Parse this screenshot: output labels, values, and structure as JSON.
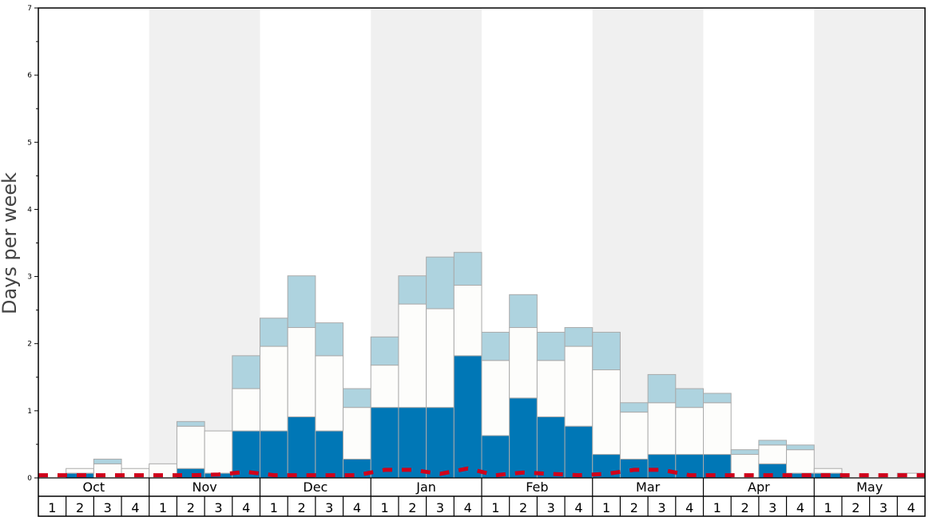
{
  "chart_data": {
    "type": "bar",
    "stacked": true,
    "ylabel": "Days per week",
    "xlabel": "",
    "ylim": [
      0,
      7
    ],
    "yticks": [
      "0",
      "1",
      "2",
      "3",
      "4",
      "5",
      "6",
      "7"
    ],
    "months": [
      "Oct",
      "Nov",
      "Dec",
      "Jan",
      "Feb",
      "Mar",
      "Apr",
      "May"
    ],
    "weeks_per_month": [
      "1",
      "2",
      "3",
      "4"
    ],
    "shaded_months": [
      "Nov",
      "Jan",
      "Mar",
      "May"
    ],
    "colors": {
      "dark": "#0077b6",
      "mid": "#fdfdfb",
      "light": "#aed3df",
      "line": "#d0021b",
      "shade": "#f0f0f0",
      "edge": "#aaaaaa"
    },
    "series": [
      {
        "name": "dark",
        "values": [
          0,
          0.07,
          0,
          0,
          0,
          0.14,
          0.07,
          0.7,
          0.7,
          0.91,
          0.7,
          0.28,
          1.05,
          1.05,
          1.05,
          1.82,
          0.63,
          1.19,
          0.91,
          0.77,
          0.35,
          0.28,
          0.35,
          0.35,
          0.35,
          0,
          0.21,
          0.07,
          0.07,
          0,
          0,
          0
        ]
      },
      {
        "name": "mid",
        "values": [
          0,
          0.07,
          0.21,
          0.14,
          0.21,
          0.63,
          0.63,
          0.63,
          1.26,
          1.33,
          1.12,
          0.77,
          0.63,
          1.54,
          1.47,
          1.05,
          1.12,
          1.05,
          0.84,
          1.19,
          1.26,
          0.7,
          0.77,
          0.7,
          0.77,
          0.35,
          0.28,
          0.35,
          0.07,
          0,
          0,
          0.07
        ]
      },
      {
        "name": "light",
        "values": [
          0,
          0,
          0.07,
          0,
          0,
          0.07,
          0,
          0.49,
          0.42,
          0.77,
          0.49,
          0.28,
          0.42,
          0.42,
          0.77,
          0.49,
          0.42,
          0.49,
          0.42,
          0.28,
          0.56,
          0.14,
          0.42,
          0.28,
          0.14,
          0.07,
          0.07,
          0.07,
          0,
          0,
          0,
          0
        ]
      },
      {
        "name": "average",
        "type": "line",
        "dashed": true,
        "values": [
          0.04,
          0.04,
          0.04,
          0.04,
          0.04,
          0.04,
          0.05,
          0.09,
          0.04,
          0.04,
          0.04,
          0.04,
          0.12,
          0.12,
          0.06,
          0.14,
          0.04,
          0.08,
          0.06,
          0.04,
          0.06,
          0.12,
          0.12,
          0.04,
          0.04,
          0.04,
          0.04,
          0.04,
          0.04,
          0.04,
          0.04,
          0.04
        ]
      }
    ]
  }
}
